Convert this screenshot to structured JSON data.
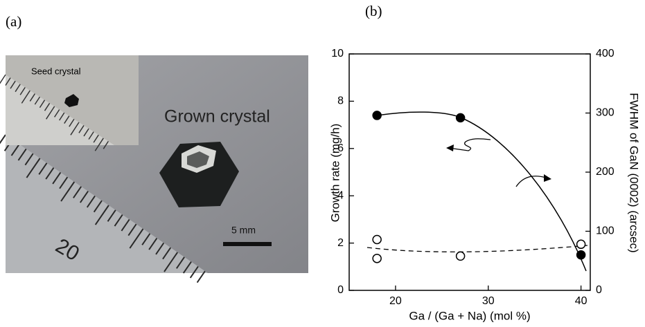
{
  "panel_a": {
    "label": "(a)",
    "inset_label": "Seed crystal",
    "main_label": "Grown crystal",
    "scale_bar": "5 mm",
    "ruler_number": "20"
  },
  "chart_data": {
    "type": "scatter",
    "panel_label": "(b)",
    "x_label": "Ga / (Ga + Na) (mol %)",
    "y_label": "Growth rate (mg/h)",
    "y2_label": "FWHM of GaN (0002) (arcsec)",
    "xlim": [
      15,
      41
    ],
    "xticks": [
      20,
      30,
      40
    ],
    "ylim": [
      0,
      10
    ],
    "yticks": [
      0,
      2,
      4,
      6,
      8,
      10
    ],
    "y2lim": [
      0,
      400
    ],
    "y2ticks": [
      0,
      100,
      200,
      300,
      400
    ],
    "series": [
      {
        "x": [
          18,
          27,
          40
        ],
        "values": [
          7.4,
          7.3,
          1.5
        ],
        "marker": "filled",
        "color": "#000000"
      },
      {
        "x": [
          18,
          18,
          27,
          40
        ],
        "values": [
          86,
          54,
          58,
          78
        ],
        "marker": "open",
        "color": "#000000",
        "axis": "y2"
      }
    ]
  }
}
